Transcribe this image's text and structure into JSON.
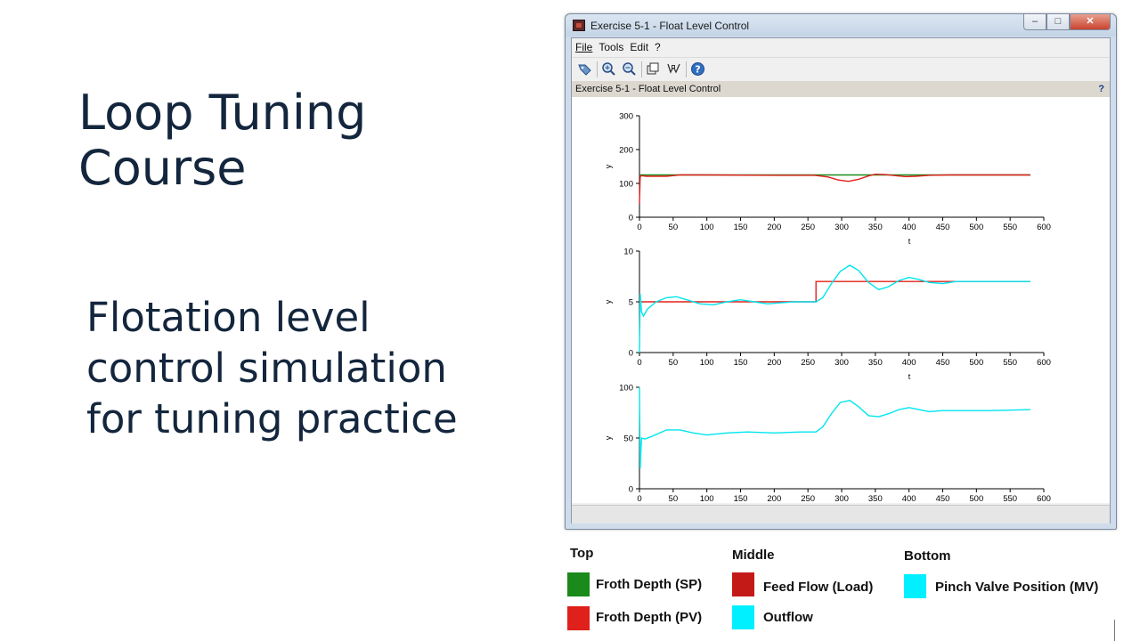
{
  "slide": {
    "title": "Loop Tuning Course",
    "subtitle": "Flotation level control simulation for tuning practice"
  },
  "window": {
    "title": "Exercise 5-1 - Float Level Control",
    "controls": {
      "minimize": "–",
      "maximize": "□",
      "close": "✕"
    },
    "menu": [
      "File",
      "Tools",
      "Edit",
      "?"
    ],
    "toolbar_icons": [
      "rotate-icon",
      "zoom-in-icon",
      "zoom-out-icon",
      "data-bounds-icon",
      "datatip-icon",
      "help-icon"
    ],
    "figure_title": "Exercise 5-1 - Float Level Control",
    "figure_help": "?"
  },
  "chart_data": [
    {
      "type": "line",
      "title": "",
      "xlabel": "t",
      "ylabel": "y",
      "xlim": [
        0,
        600
      ],
      "ylim": [
        0,
        300
      ],
      "xticks": [
        0,
        50,
        100,
        150,
        200,
        250,
        300,
        350,
        400,
        450,
        500,
        550,
        600
      ],
      "yticks": [
        0,
        100,
        200,
        300
      ],
      "series": [
        {
          "color": "#1a8a1a",
          "x": [
            0,
            2,
            580
          ],
          "y": [
            125,
            125,
            125
          ]
        },
        {
          "color": "#e0201a",
          "x": [
            0,
            1,
            3,
            10,
            40,
            60,
            100,
            200,
            260,
            280,
            295,
            310,
            325,
            340,
            350,
            365,
            380,
            395,
            410,
            430,
            460,
            500,
            580
          ],
          "y": [
            40,
            120,
            123,
            121,
            121,
            125,
            125,
            124,
            124,
            119,
            110,
            106,
            112,
            122,
            127,
            126,
            123,
            120,
            121,
            124,
            125,
            125,
            125
          ]
        }
      ]
    },
    {
      "type": "line",
      "title": "",
      "xlabel": "t",
      "ylabel": "y",
      "xlim": [
        0,
        600
      ],
      "ylim": [
        0,
        10
      ],
      "xticks": [
        0,
        50,
        100,
        150,
        200,
        250,
        300,
        350,
        400,
        450,
        500,
        550,
        600
      ],
      "yticks": [
        0,
        5,
        10
      ],
      "series": [
        {
          "color": "#e0201a",
          "x": [
            0,
            262,
            262,
            580
          ],
          "y": [
            5,
            5,
            7,
            7
          ]
        },
        {
          "color": "#00e5ee",
          "x": [
            0,
            1,
            3,
            6,
            12,
            25,
            40,
            55,
            70,
            90,
            110,
            130,
            150,
            170,
            190,
            210,
            230,
            250,
            262,
            272,
            285,
            298,
            312,
            325,
            340,
            355,
            370,
            385,
            400,
            415,
            430,
            450,
            470,
            500,
            530,
            580
          ],
          "y": [
            0,
            5.8,
            4.0,
            3.6,
            4.3,
            5.0,
            5.4,
            5.5,
            5.2,
            4.8,
            4.7,
            5.0,
            5.2,
            5.0,
            4.8,
            4.9,
            5.0,
            5.0,
            5.0,
            5.4,
            6.8,
            8.0,
            8.6,
            8.1,
            6.9,
            6.2,
            6.5,
            7.1,
            7.4,
            7.2,
            6.9,
            6.8,
            7.0,
            7.0,
            7.0,
            7.0
          ]
        }
      ]
    },
    {
      "type": "line",
      "title": "",
      "xlabel": "",
      "ylabel": "y",
      "xlim": [
        0,
        600
      ],
      "ylim": [
        0,
        100
      ],
      "xticks": [
        0,
        50,
        100,
        150,
        200,
        250,
        300,
        350,
        400,
        450,
        500,
        550,
        600
      ],
      "yticks": [
        0,
        50,
        100
      ],
      "series": [
        {
          "color": "#00e5ee",
          "x": [
            0,
            1,
            3,
            8,
            20,
            40,
            60,
            80,
            100,
            130,
            160,
            200,
            240,
            262,
            272,
            285,
            298,
            312,
            325,
            340,
            355,
            370,
            385,
            400,
            415,
            430,
            450,
            480,
            520,
            580
          ],
          "y": [
            100,
            20,
            50,
            49,
            52,
            58,
            58,
            55,
            53,
            55,
            56,
            55,
            56,
            56,
            61,
            74,
            85,
            87,
            81,
            72,
            71,
            74,
            78,
            80,
            78,
            76,
            77,
            77,
            77,
            78
          ]
        }
      ]
    }
  ],
  "legend": {
    "top": {
      "heading": "Top",
      "items": [
        {
          "label": "Froth Depth (SP)",
          "color": "#1a8a1a"
        },
        {
          "label": "Froth Depth (PV)",
          "color": "#e0201a"
        }
      ]
    },
    "middle": {
      "heading": "Middle",
      "items": [
        {
          "label": "Feed Flow (Load)",
          "color": "#c41a17"
        },
        {
          "label": "Outflow",
          "color": "#00f0ff"
        }
      ]
    },
    "bottom": {
      "heading": "Bottom",
      "items": [
        {
          "label": "Pinch Valve Position (MV)",
          "color": "#00f0ff"
        }
      ]
    }
  }
}
